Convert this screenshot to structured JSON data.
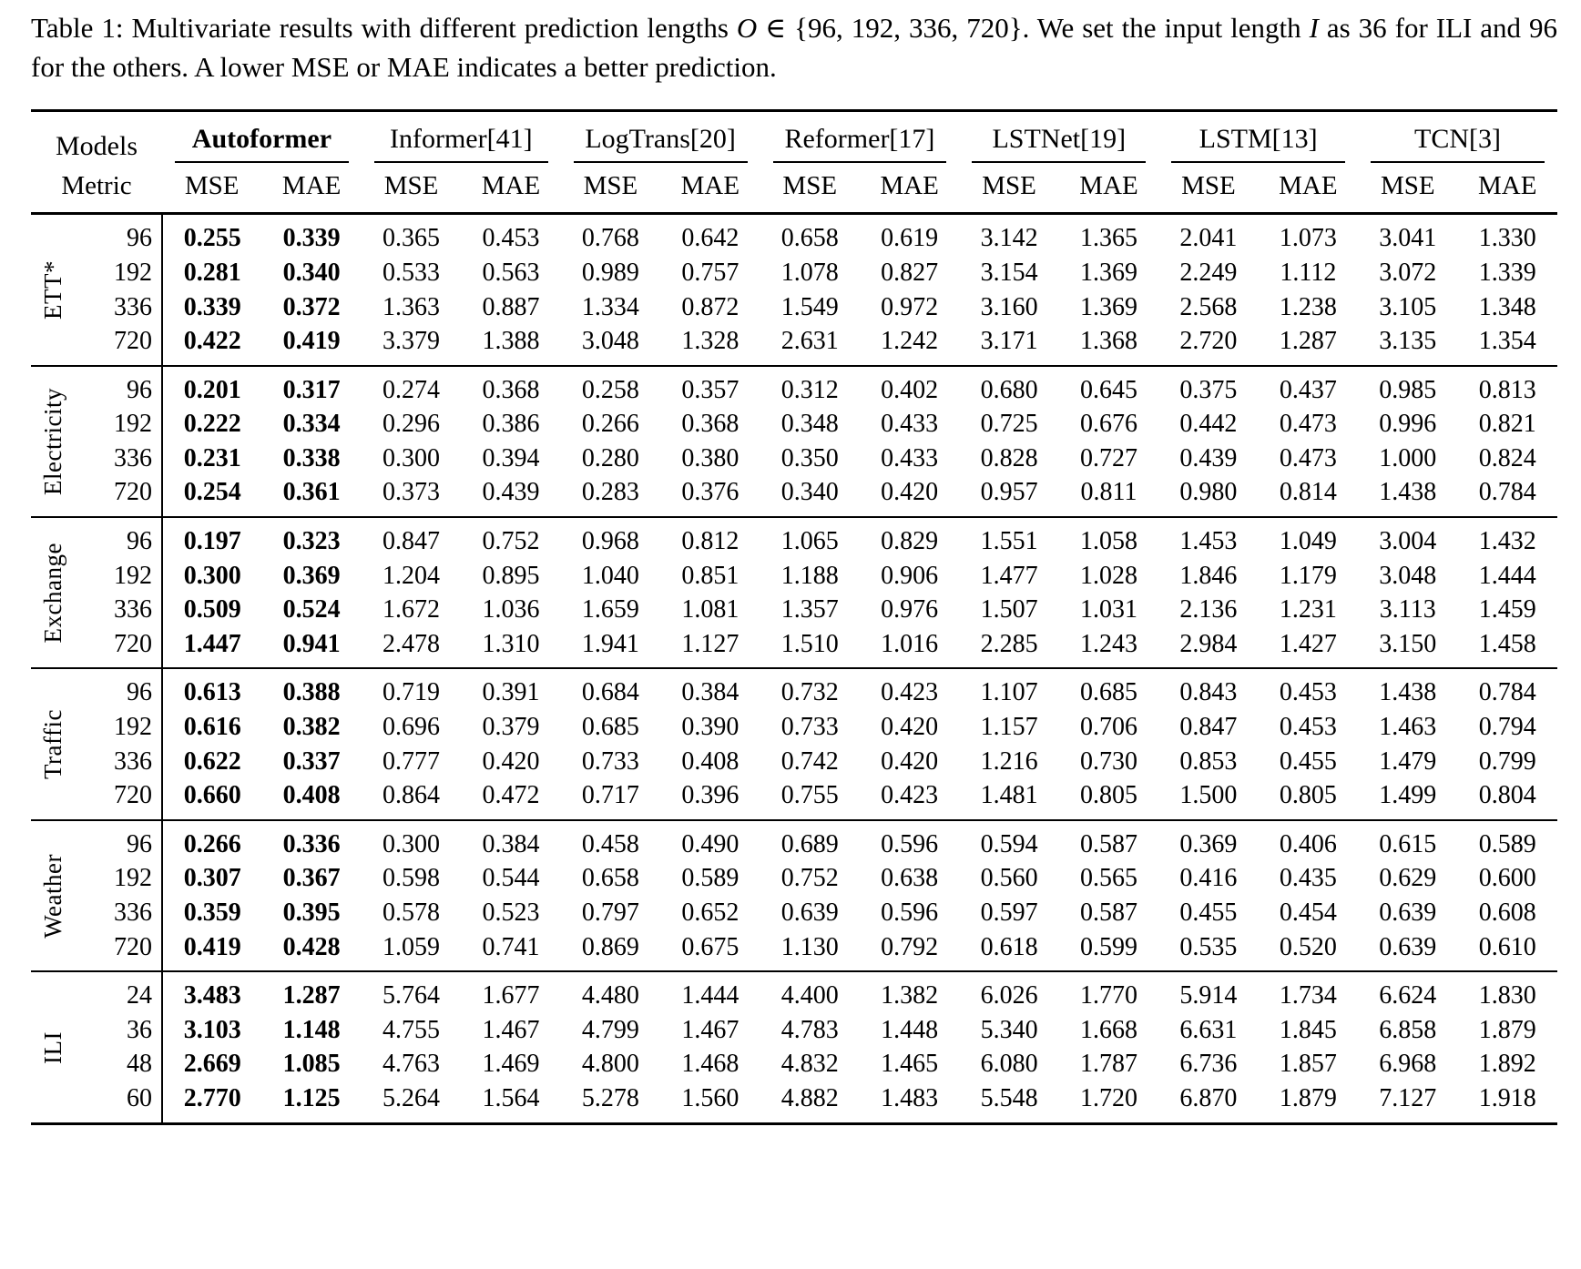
{
  "caption": {
    "label": "Table 1:",
    "segments": [
      "Multivariate results with different prediction lengths ",
      "O",
      " ∈ {96, 192, 336, 720}. We set the input length ",
      "I",
      " as 36 for ILI and 96 for the others. A lower MSE or MAE indicates a better prediction."
    ]
  },
  "table": {
    "models_header": "Models",
    "metric_header": "Metric",
    "metrics": [
      "MSE",
      "MAE"
    ],
    "bold_cols": [
      0,
      1
    ],
    "models": [
      {
        "name": "Autoformer",
        "bold": true
      },
      {
        "name": "Informer[41]",
        "bold": false
      },
      {
        "name": "LogTrans[20]",
        "bold": false
      },
      {
        "name": "Reformer[17]",
        "bold": false
      },
      {
        "name": "LSTNet[19]",
        "bold": false
      },
      {
        "name": "LSTM[13]",
        "bold": false
      },
      {
        "name": "TCN[3]",
        "bold": false
      }
    ],
    "groups": [
      {
        "dataset": "ETT*",
        "rows": [
          {
            "len": "96",
            "cells": [
              "0.255",
              "0.339",
              "0.365",
              "0.453",
              "0.768",
              "0.642",
              "0.658",
              "0.619",
              "3.142",
              "1.365",
              "2.041",
              "1.073",
              "3.041",
              "1.330"
            ]
          },
          {
            "len": "192",
            "cells": [
              "0.281",
              "0.340",
              "0.533",
              "0.563",
              "0.989",
              "0.757",
              "1.078",
              "0.827",
              "3.154",
              "1.369",
              "2.249",
              "1.112",
              "3.072",
              "1.339"
            ]
          },
          {
            "len": "336",
            "cells": [
              "0.339",
              "0.372",
              "1.363",
              "0.887",
              "1.334",
              "0.872",
              "1.549",
              "0.972",
              "3.160",
              "1.369",
              "2.568",
              "1.238",
              "3.105",
              "1.348"
            ]
          },
          {
            "len": "720",
            "cells": [
              "0.422",
              "0.419",
              "3.379",
              "1.388",
              "3.048",
              "1.328",
              "2.631",
              "1.242",
              "3.171",
              "1.368",
              "2.720",
              "1.287",
              "3.135",
              "1.354"
            ]
          }
        ]
      },
      {
        "dataset": "Electricity",
        "rows": [
          {
            "len": "96",
            "cells": [
              "0.201",
              "0.317",
              "0.274",
              "0.368",
              "0.258",
              "0.357",
              "0.312",
              "0.402",
              "0.680",
              "0.645",
              "0.375",
              "0.437",
              "0.985",
              "0.813"
            ]
          },
          {
            "len": "192",
            "cells": [
              "0.222",
              "0.334",
              "0.296",
              "0.386",
              "0.266",
              "0.368",
              "0.348",
              "0.433",
              "0.725",
              "0.676",
              "0.442",
              "0.473",
              "0.996",
              "0.821"
            ]
          },
          {
            "len": "336",
            "cells": [
              "0.231",
              "0.338",
              "0.300",
              "0.394",
              "0.280",
              "0.380",
              "0.350",
              "0.433",
              "0.828",
              "0.727",
              "0.439",
              "0.473",
              "1.000",
              "0.824"
            ]
          },
          {
            "len": "720",
            "cells": [
              "0.254",
              "0.361",
              "0.373",
              "0.439",
              "0.283",
              "0.376",
              "0.340",
              "0.420",
              "0.957",
              "0.811",
              "0.980",
              "0.814",
              "1.438",
              "0.784"
            ]
          }
        ]
      },
      {
        "dataset": "Exchange",
        "rows": [
          {
            "len": "96",
            "cells": [
              "0.197",
              "0.323",
              "0.847",
              "0.752",
              "0.968",
              "0.812",
              "1.065",
              "0.829",
              "1.551",
              "1.058",
              "1.453",
              "1.049",
              "3.004",
              "1.432"
            ]
          },
          {
            "len": "192",
            "cells": [
              "0.300",
              "0.369",
              "1.204",
              "0.895",
              "1.040",
              "0.851",
              "1.188",
              "0.906",
              "1.477",
              "1.028",
              "1.846",
              "1.179",
              "3.048",
              "1.444"
            ]
          },
          {
            "len": "336",
            "cells": [
              "0.509",
              "0.524",
              "1.672",
              "1.036",
              "1.659",
              "1.081",
              "1.357",
              "0.976",
              "1.507",
              "1.031",
              "2.136",
              "1.231",
              "3.113",
              "1.459"
            ]
          },
          {
            "len": "720",
            "cells": [
              "1.447",
              "0.941",
              "2.478",
              "1.310",
              "1.941",
              "1.127",
              "1.510",
              "1.016",
              "2.285",
              "1.243",
              "2.984",
              "1.427",
              "3.150",
              "1.458"
            ]
          }
        ]
      },
      {
        "dataset": "Traffic",
        "rows": [
          {
            "len": "96",
            "cells": [
              "0.613",
              "0.388",
              "0.719",
              "0.391",
              "0.684",
              "0.384",
              "0.732",
              "0.423",
              "1.107",
              "0.685",
              "0.843",
              "0.453",
              "1.438",
              "0.784"
            ]
          },
          {
            "len": "192",
            "cells": [
              "0.616",
              "0.382",
              "0.696",
              "0.379",
              "0.685",
              "0.390",
              "0.733",
              "0.420",
              "1.157",
              "0.706",
              "0.847",
              "0.453",
              "1.463",
              "0.794"
            ]
          },
          {
            "len": "336",
            "cells": [
              "0.622",
              "0.337",
              "0.777",
              "0.420",
              "0.733",
              "0.408",
              "0.742",
              "0.420",
              "1.216",
              "0.730",
              "0.853",
              "0.455",
              "1.479",
              "0.799"
            ]
          },
          {
            "len": "720",
            "cells": [
              "0.660",
              "0.408",
              "0.864",
              "0.472",
              "0.717",
              "0.396",
              "0.755",
              "0.423",
              "1.481",
              "0.805",
              "1.500",
              "0.805",
              "1.499",
              "0.804"
            ]
          }
        ]
      },
      {
        "dataset": "Weather",
        "rows": [
          {
            "len": "96",
            "cells": [
              "0.266",
              "0.336",
              "0.300",
              "0.384",
              "0.458",
              "0.490",
              "0.689",
              "0.596",
              "0.594",
              "0.587",
              "0.369",
              "0.406",
              "0.615",
              "0.589"
            ]
          },
          {
            "len": "192",
            "cells": [
              "0.307",
              "0.367",
              "0.598",
              "0.544",
              "0.658",
              "0.589",
              "0.752",
              "0.638",
              "0.560",
              "0.565",
              "0.416",
              "0.435",
              "0.629",
              "0.600"
            ]
          },
          {
            "len": "336",
            "cells": [
              "0.359",
              "0.395",
              "0.578",
              "0.523",
              "0.797",
              "0.652",
              "0.639",
              "0.596",
              "0.597",
              "0.587",
              "0.455",
              "0.454",
              "0.639",
              "0.608"
            ]
          },
          {
            "len": "720",
            "cells": [
              "0.419",
              "0.428",
              "1.059",
              "0.741",
              "0.869",
              "0.675",
              "1.130",
              "0.792",
              "0.618",
              "0.599",
              "0.535",
              "0.520",
              "0.639",
              "0.610"
            ]
          }
        ]
      },
      {
        "dataset": "ILI",
        "rows": [
          {
            "len": "24",
            "cells": [
              "3.483",
              "1.287",
              "5.764",
              "1.677",
              "4.480",
              "1.444",
              "4.400",
              "1.382",
              "6.026",
              "1.770",
              "5.914",
              "1.734",
              "6.624",
              "1.830"
            ]
          },
          {
            "len": "36",
            "cells": [
              "3.103",
              "1.148",
              "4.755",
              "1.467",
              "4.799",
              "1.467",
              "4.783",
              "1.448",
              "5.340",
              "1.668",
              "6.631",
              "1.845",
              "6.858",
              "1.879"
            ]
          },
          {
            "len": "48",
            "cells": [
              "2.669",
              "1.085",
              "4.763",
              "1.469",
              "4.800",
              "1.468",
              "4.832",
              "1.465",
              "6.080",
              "1.787",
              "6.736",
              "1.857",
              "6.968",
              "1.892"
            ]
          },
          {
            "len": "60",
            "cells": [
              "2.770",
              "1.125",
              "5.264",
              "1.564",
              "5.278",
              "1.560",
              "4.882",
              "1.483",
              "5.548",
              "1.720",
              "6.870",
              "1.879",
              "7.127",
              "1.918"
            ]
          }
        ]
      }
    ]
  }
}
